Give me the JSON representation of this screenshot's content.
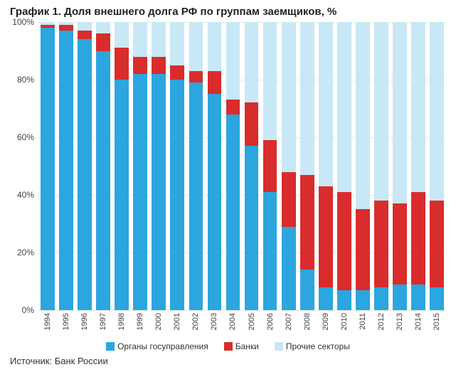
{
  "title": "График 1. Доля внешнего долга РФ по группам заемщиков, %",
  "source": "Источник: Банк России",
  "chart": {
    "type": "stacked-bar",
    "background_color": "#ffffff",
    "grid_color": "#e6e6e6",
    "axis_label_color": "#444444",
    "bar_width": 0.76,
    "y_axis": {
      "min": 0,
      "max": 100,
      "ticks": [
        {
          "v": 0,
          "label": "0%"
        },
        {
          "v": 20,
          "label": "20%"
        },
        {
          "v": 40,
          "label": "40%"
        },
        {
          "v": 60,
          "label": "60%"
        },
        {
          "v": 80,
          "label": "80%"
        },
        {
          "v": 100,
          "label": "100%"
        }
      ],
      "label_fontsize": 12
    },
    "x_axis": {
      "rotation_deg": -90,
      "label_fontsize": 11
    },
    "categories": [
      "1994",
      "1995",
      "1996",
      "1997",
      "1998",
      "1999",
      "2000",
      "2001",
      "2002",
      "2003",
      "2004",
      "2005",
      "2006",
      "2007",
      "2008",
      "2009",
      "2010",
      "2011",
      "2012",
      "2013",
      "2014",
      "2015"
    ],
    "series": [
      {
        "key": "gov",
        "label": "Органы госуправления",
        "color": "#2ba6de"
      },
      {
        "key": "banks",
        "label": "Банки",
        "color": "#d92c2c"
      },
      {
        "key": "other",
        "label": "Прочие секторы",
        "color": "#c8e8f5"
      }
    ],
    "values": {
      "gov": [
        98,
        97,
        94,
        90,
        80,
        82,
        82,
        80,
        79,
        75,
        68,
        57,
        41,
        29,
        14,
        8,
        7,
        7,
        8,
        9,
        9,
        8
      ],
      "banks": [
        1,
        2,
        3,
        6,
        11,
        6,
        6,
        5,
        4,
        8,
        5,
        15,
        18,
        19,
        33,
        35,
        34,
        28,
        30,
        28,
        32,
        30
      ],
      "other": [
        1,
        1,
        3,
        4,
        9,
        12,
        12,
        15,
        17,
        17,
        27,
        28,
        41,
        52,
        53,
        57,
        59,
        65,
        62,
        63,
        59,
        62
      ]
    }
  }
}
